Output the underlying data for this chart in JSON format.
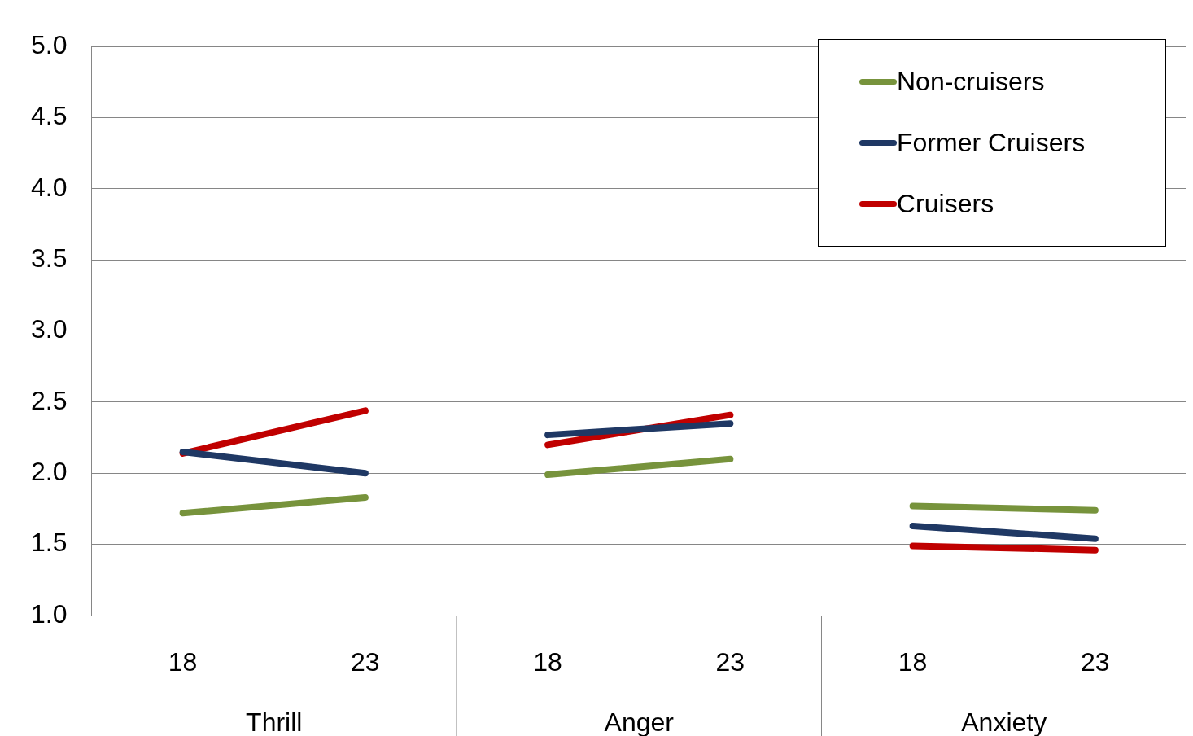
{
  "chart_data": {
    "type": "line",
    "categories": [
      "18",
      "23",
      "18",
      "23",
      "18",
      "23"
    ],
    "series": [
      {
        "name": "Non-cruisers",
        "color": "#77933c",
        "values": [
          1.72,
          1.83,
          1.99,
          2.1,
          1.77,
          1.74
        ]
      },
      {
        "name": "Former Cruisers",
        "color": "#1f3864",
        "values": [
          2.15,
          2.0,
          2.27,
          2.35,
          1.63,
          1.54
        ]
      },
      {
        "name": "Cruisers",
        "color": "#c00000",
        "values": [
          2.14,
          2.44,
          2.2,
          2.41,
          1.49,
          1.46
        ]
      }
    ],
    "annotations": [
      "Thrill",
      "Anger",
      "Anxiety"
    ],
    "ylim": [
      1.0,
      5.0
    ],
    "yticks": [
      {
        "value": 1,
        "label": "1.0"
      },
      {
        "value": 1.5,
        "label": "1.5"
      },
      {
        "value": 2,
        "label": "2.0"
      },
      {
        "value": 2.5,
        "label": "2.5"
      },
      {
        "value": 3,
        "label": "3.0"
      },
      {
        "value": 3.5,
        "label": "3.5"
      },
      {
        "value": 4,
        "label": "4.0"
      },
      {
        "value": 4.5,
        "label": "4.5"
      },
      {
        "value": 5,
        "label": "5.0"
      }
    ],
    "grid": "y",
    "legend": "top right",
    "marker": "none",
    "line_style": "solid"
  }
}
